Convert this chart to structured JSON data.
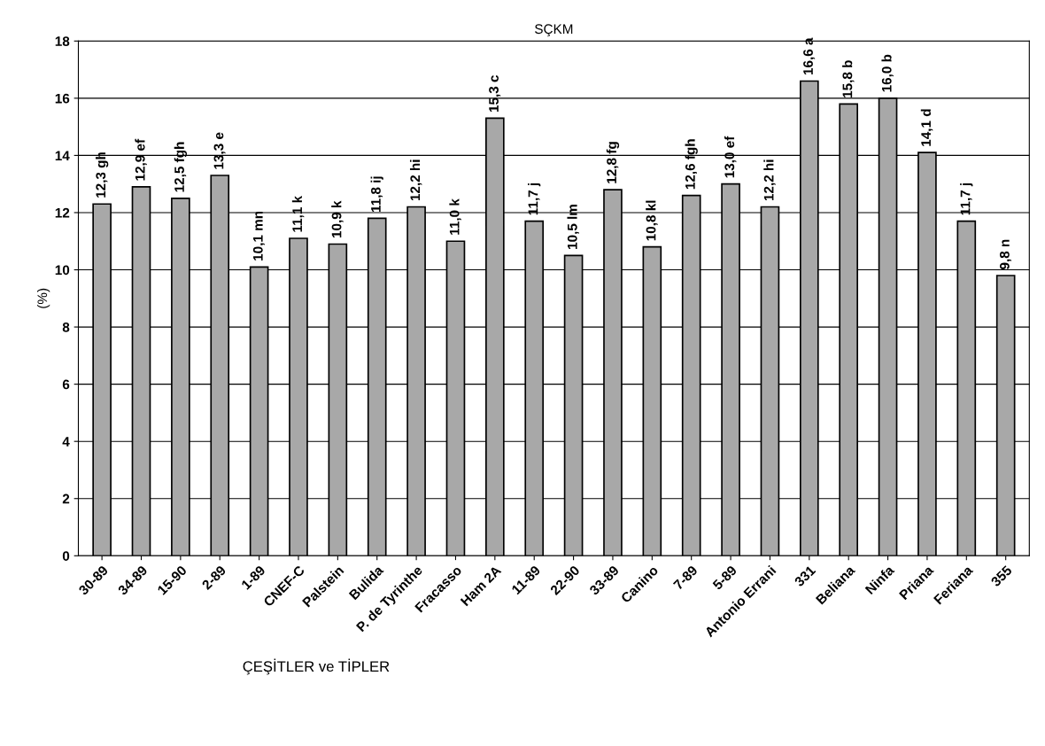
{
  "chart_data": {
    "type": "bar",
    "title": "SÇKM",
    "xlabel": "ÇEŞİTLER ve TİPLER",
    "ylabel": "(%)",
    "categories": [
      "30-89",
      "34-89",
      "15-90",
      "2-89",
      "1-89",
      "CNEF-C",
      "Palstein",
      "Bulida",
      "P. de Tyrinthe",
      "Fracasso",
      "Ham 2A",
      "11-89",
      "22-90",
      "33-89",
      "Canino",
      "7-89",
      "5-89",
      "Antonio Errani",
      "331",
      "Beliana",
      "Ninfa",
      "Priana",
      "Feriana",
      "355"
    ],
    "values": [
      12.3,
      12.9,
      12.5,
      13.3,
      10.1,
      11.1,
      10.9,
      11.8,
      12.2,
      11.0,
      15.3,
      11.7,
      10.5,
      12.8,
      10.8,
      12.6,
      13.0,
      12.2,
      16.6,
      15.8,
      16.0,
      14.1,
      11.7,
      9.8
    ],
    "value_labels": [
      "12,3 gh",
      "12,9 ef",
      "12,5 fgh",
      "13,3 e",
      "10,1 mn",
      "11,1 k",
      "10,9 k",
      "11,8 ij",
      "12,2 hi",
      "11,0 k",
      "15,3 c",
      "11,7 j",
      "10,5 lm",
      "12,8 fg",
      "10,8 kl",
      "12,6 fgh",
      "13,0 ef",
      "12,2 hi",
      "16,6 a",
      "15,8 b",
      "16,0 b",
      "14,1 d",
      "11,7 j",
      "9,8 n"
    ],
    "color": "#a8a8a8",
    "ylim": [
      0,
      18
    ],
    "yticks": [
      0,
      2,
      4,
      6,
      8,
      10,
      12,
      14,
      16,
      18
    ],
    "grid": "y",
    "legend": false
  }
}
